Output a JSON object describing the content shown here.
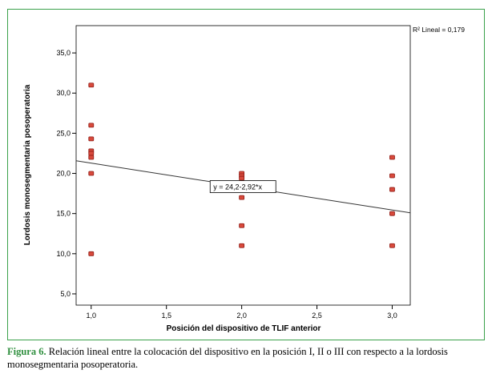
{
  "chart_data": {
    "type": "scatter",
    "xlabel": "Posición del dispositivo de TLIF anterior",
    "ylabel": "Lordosis monosegmentaria posoperatoria",
    "xlim": [
      0.9,
      3.12
    ],
    "ylim": [
      3.6,
      38.4
    ],
    "x_ticks": [
      1.0,
      1.5,
      2.0,
      2.5,
      3.0
    ],
    "x_tick_labels": [
      "1,0",
      "1,5",
      "2,0",
      "2,5",
      "3,0"
    ],
    "y_ticks": [
      5,
      10,
      15,
      20,
      25,
      30,
      35
    ],
    "y_tick_labels": [
      "5,0",
      "10,0",
      "15,0",
      "20,0",
      "25,0",
      "30,0",
      "35,0"
    ],
    "points": [
      {
        "x": 1,
        "y": 31
      },
      {
        "x": 1,
        "y": 26
      },
      {
        "x": 1,
        "y": 24.3
      },
      {
        "x": 1,
        "y": 22.8
      },
      {
        "x": 1,
        "y": 22.5
      },
      {
        "x": 1,
        "y": 22
      },
      {
        "x": 1,
        "y": 20
      },
      {
        "x": 1,
        "y": 10
      },
      {
        "x": 2,
        "y": 20
      },
      {
        "x": 2,
        "y": 19.7
      },
      {
        "x": 2,
        "y": 19.4
      },
      {
        "x": 2,
        "y": 17
      },
      {
        "x": 2,
        "y": 13.5
      },
      {
        "x": 2,
        "y": 11
      },
      {
        "x": 3,
        "y": 22
      },
      {
        "x": 3,
        "y": 19.7
      },
      {
        "x": 3,
        "y": 18
      },
      {
        "x": 3,
        "y": 15
      },
      {
        "x": 3,
        "y": 11
      }
    ],
    "fit_line": {
      "intercept": 24.2,
      "slope": -2.92,
      "label": "y = 24,2-2,92*x"
    },
    "r_squared_label": "R² Lineal = 0,179",
    "grid": false
  },
  "caption": {
    "label": "Figura 6.",
    "text": " Relación lineal entre la colocación del dispositivo en la posición I, II o III con respecto a la lordosis monosegmentaria posoperatoria."
  },
  "colors": {
    "frame_border": "#3aa14a",
    "marker_fill": "#d84a3c",
    "marker_edge": "#8e1a14",
    "caption_label": "#2f8f3e"
  }
}
